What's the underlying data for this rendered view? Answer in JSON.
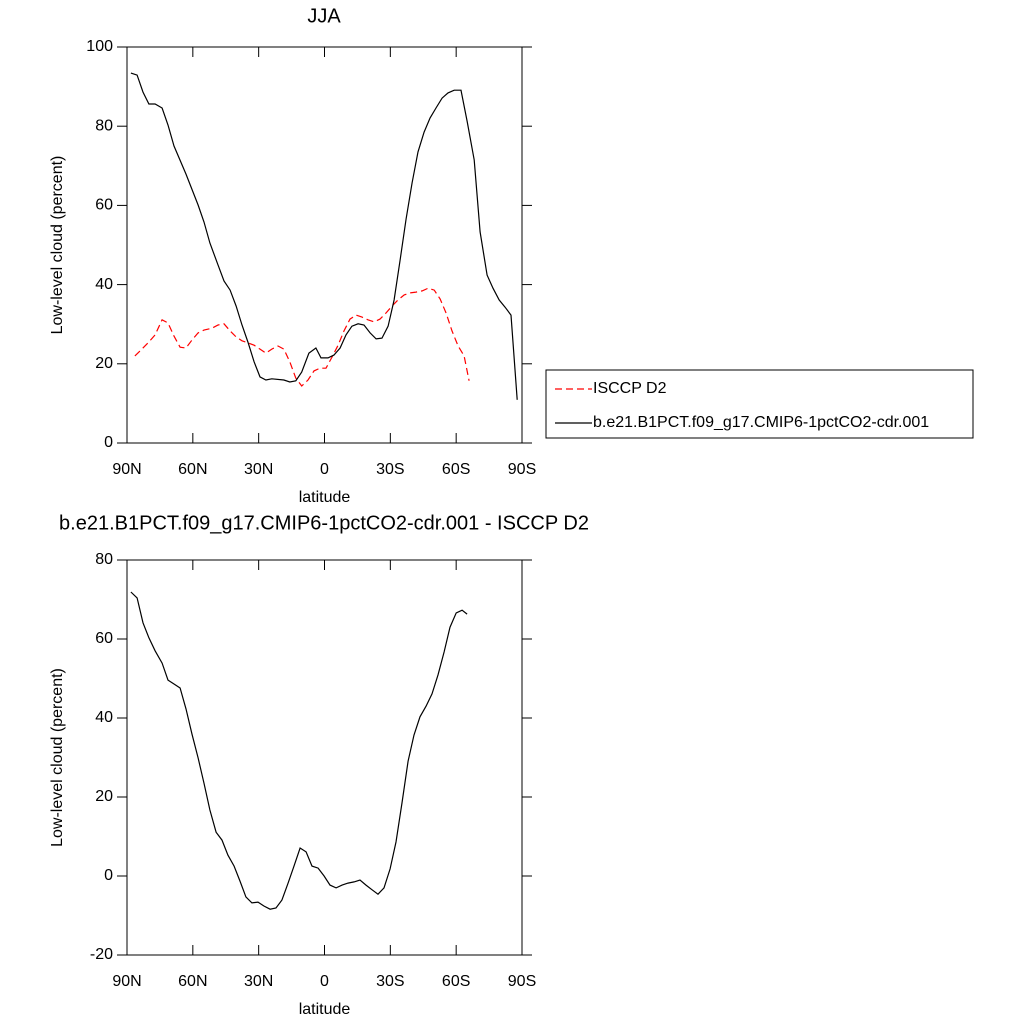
{
  "chart_data": [
    {
      "type": "line",
      "title": "JJA",
      "xlabel": "latitude",
      "ylabel": "Low-level cloud (percent)",
      "xlim": [
        90,
        -90
      ],
      "xticks": [
        {
          "value": 90,
          "label": "90N"
        },
        {
          "value": 60,
          "label": "60N"
        },
        {
          "value": 30,
          "label": "30N"
        },
        0,
        {
          "value": -30,
          "label": "30S"
        },
        {
          "value": -60,
          "label": "60S"
        },
        {
          "value": -90,
          "label": "90S"
        }
      ],
      "ylim": [
        0,
        100
      ],
      "yticks": [
        0,
        20,
        40,
        60,
        80,
        100
      ],
      "series": [
        {
          "name": "ISCCP D2",
          "color": "#ff0000",
          "dash": true,
          "x": [
            86.4,
            83.2,
            80,
            77.2,
            74,
            71.3,
            68.6,
            65.8,
            63.1,
            60.4,
            57.6,
            54.9,
            51.3,
            48.5,
            45.8,
            43,
            40.3,
            37.6,
            34.9,
            32.1,
            29.4,
            26.7,
            24,
            21.2,
            18.5,
            15.8,
            13.1,
            10.4,
            7.5,
            4.8,
            2.1,
            -0.7,
            -3.4,
            -6.2,
            -8.9,
            -11.6,
            -14.4,
            -17.1,
            -19.8,
            -22.6,
            -25.3,
            -28,
            -30.8,
            -33.5,
            -36.3,
            -39,
            -41.7,
            -44.5,
            -47.2,
            -50,
            -52.7,
            -55.4,
            -58.1,
            -60.9,
            -63.6,
            -65.9
          ],
          "values": [
            22,
            23.7,
            25.5,
            27.3,
            31.1,
            30.3,
            27,
            24.2,
            24,
            26,
            27.8,
            28.5,
            29,
            29.8,
            30.1,
            28.3,
            26.8,
            25.8,
            25.3,
            24.7,
            23.7,
            22.7,
            23.7,
            24.5,
            23.7,
            20.5,
            16.4,
            14.4,
            15.9,
            18.2,
            18.9,
            18.9,
            21.7,
            24.7,
            28.3,
            31.3,
            32.3,
            31.8,
            31.1,
            30.6,
            31.3,
            32.8,
            34.6,
            36.1,
            37.4,
            37.9,
            38.1,
            38.4,
            39.1,
            38.6,
            36.4,
            32.8,
            28.3,
            24.5,
            22,
            15.7
          ]
        },
        {
          "name": "b.e21.B1PCT.f09_g17.CMIP6-1pctCO2-cdr.001",
          "color": "#000000",
          "dash": false,
          "x": [
            88.2,
            85.4,
            82.7,
            80,
            77.2,
            74,
            71.3,
            68.6,
            63.1,
            57.6,
            54.9,
            52.2,
            48.5,
            45.8,
            43,
            40.3,
            37.6,
            34.9,
            32.1,
            29.4,
            26.7,
            24,
            18.5,
            15.8,
            13.1,
            10.4,
            7.1,
            3.9,
            1.6,
            -1.6,
            -4.3,
            -7.1,
            -9.8,
            -12.5,
            -15.3,
            -18,
            -20.8,
            -23.5,
            -26.2,
            -29,
            -31.7,
            -34.4,
            -37.2,
            -39.9,
            -42.6,
            -45.4,
            -48.1,
            -50.8,
            -53.6,
            -56.3,
            -59.1,
            -62.2,
            -65,
            -68.2,
            -70.9,
            -74.1,
            -76.8,
            -79.6,
            -82.3,
            -85,
            -87.8
          ],
          "values": [
            93.4,
            92.9,
            88.6,
            85.6,
            85.6,
            84.6,
            80.3,
            75,
            67.9,
            60.1,
            55.8,
            50.5,
            44.9,
            40.9,
            38.6,
            34.6,
            29.8,
            25.5,
            20.5,
            16.7,
            15.9,
            16.2,
            15.9,
            15.4,
            15.7,
            17.9,
            22.7,
            24,
            21.5,
            21.5,
            22.2,
            24,
            27.3,
            29.5,
            30.1,
            29.8,
            27.8,
            26.3,
            26.5,
            29.5,
            36.1,
            46,
            56.6,
            65.7,
            73.5,
            78.5,
            82.1,
            84.6,
            87.1,
            88.4,
            89.1,
            89.1,
            81.3,
            71.5,
            53.3,
            42.4,
            39.1,
            36.1,
            34.3,
            32.3,
            10.9
          ]
        }
      ]
    },
    {
      "type": "line",
      "title": "b.e21.B1PCT.f09_g17.CMIP6-1pctCO2-cdr.001 - ISCCP D2",
      "xlabel": "latitude",
      "ylabel": "Low-level cloud (percent)",
      "xlim": [
        90,
        -90
      ],
      "xticks": [
        {
          "value": 90,
          "label": "90N"
        },
        {
          "value": 60,
          "label": "60N"
        },
        {
          "value": 30,
          "label": "30N"
        },
        0,
        {
          "value": -30,
          "label": "30S"
        },
        {
          "value": -60,
          "label": "60S"
        },
        {
          "value": -90,
          "label": "90S"
        }
      ],
      "ylim": [
        -20,
        80
      ],
      "yticks": [
        -20,
        0,
        20,
        40,
        60,
        80
      ],
      "series": [
        {
          "color": "#000000",
          "dash": false,
          "x": [
            88.2,
            85.4,
            82.7,
            80,
            77.2,
            74,
            71.3,
            68.6,
            65.8,
            63.1,
            60.4,
            57.6,
            54.9,
            52.2,
            49.4,
            46.7,
            44,
            41.2,
            38.5,
            35.8,
            33.1,
            30.3,
            27.6,
            24.8,
            22.1,
            19.4,
            16.6,
            13.9,
            11.1,
            8.4,
            5.7,
            2.9,
            0.2,
            -2.5,
            -5.3,
            -8,
            -10.7,
            -13.5,
            -16.2,
            -18.9,
            -21.7,
            -24.4,
            -27.1,
            -29.9,
            -32.6,
            -35.3,
            -38.1,
            -40.8,
            -43.5,
            -46.3,
            -49,
            -51.7,
            -54.5,
            -57.2,
            -60,
            -62.7,
            -65
          ],
          "values": [
            71.9,
            70.4,
            64.1,
            60.3,
            57,
            53.9,
            49.6,
            48.6,
            47.6,
            42.3,
            35.9,
            29.9,
            23.5,
            16.7,
            11.1,
            9.1,
            5.3,
            2.5,
            -1.3,
            -5.3,
            -6.8,
            -6.6,
            -7.6,
            -8.4,
            -8.1,
            -6.1,
            -1.8,
            2.5,
            7.1,
            6.1,
            2.5,
            2,
            0,
            -2.3,
            -3,
            -2.3,
            -1.8,
            -1.5,
            -1,
            -2.3,
            -3.5,
            -4.6,
            -3,
            1.8,
            8.6,
            18.5,
            29.1,
            35.7,
            40.3,
            43,
            46.1,
            50.9,
            56.7,
            63,
            66.6,
            67.3,
            66.3
          ]
        }
      ]
    }
  ]
}
